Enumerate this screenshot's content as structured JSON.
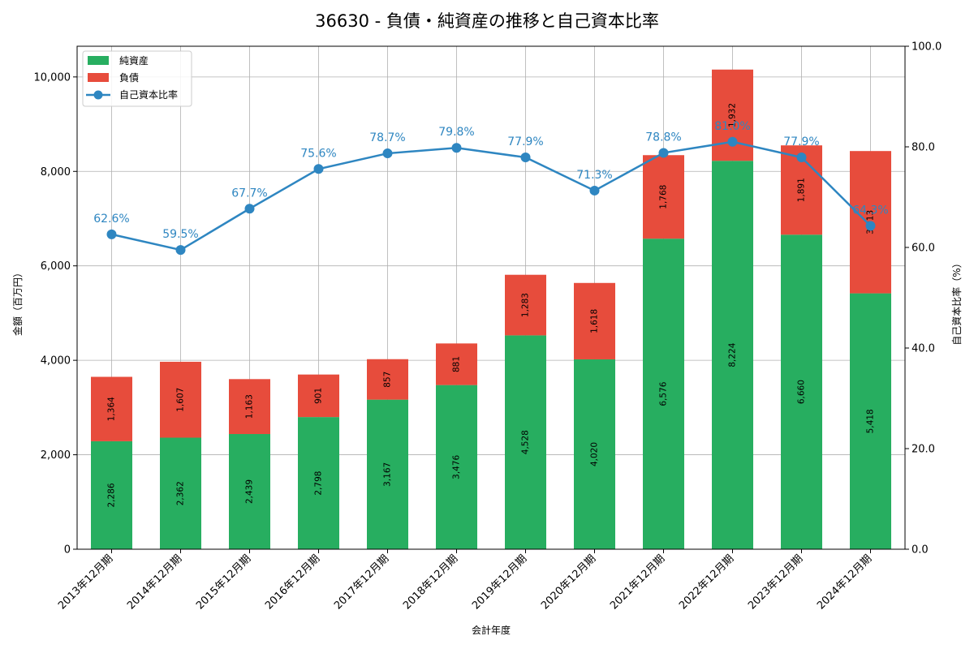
{
  "chart_data": {
    "type": "bar",
    "title": "36630 - 負債・純資産の推移と自己資本比率",
    "xlabel": "会計年度",
    "ylabel": "金額（百万円）",
    "y2label": "自己資本比率（%）",
    "ylim": [
      0,
      10650
    ],
    "y2lim": [
      0,
      100
    ],
    "yticks": [
      "0",
      "2,000",
      "4,000",
      "6,000",
      "8,000",
      "10,000"
    ],
    "y2ticks": [
      "0.0",
      "20.0",
      "40.0",
      "60.0",
      "80.0",
      "100.0"
    ],
    "grid": true,
    "legend_position": "top-left",
    "categories": [
      "2013年12月期",
      "2014年12月期",
      "2015年12月期",
      "2016年12月期",
      "2017年12月期",
      "2018年12月期",
      "2019年12月期",
      "2020年12月期",
      "2021年12月期",
      "2022年12月期",
      "2023年12月期",
      "2024年12月期"
    ],
    "series": [
      {
        "name": "純資産",
        "kind": "bar-stacked",
        "color": "#27ae60",
        "values": [
          2286,
          2362,
          2439,
          2798,
          3167,
          3476,
          4528,
          4020,
          6576,
          8224,
          6660,
          5418
        ],
        "labels": [
          "2,286",
          "2,362",
          "2,439",
          "2,798",
          "3,167",
          "3,476",
          "4,528",
          "4,020",
          "6,576",
          "8,224",
          "6,660",
          "5,418"
        ]
      },
      {
        "name": "負債",
        "kind": "bar-stacked",
        "color": "#e74c3c",
        "values": [
          1364,
          1607,
          1163,
          901,
          857,
          881,
          1283,
          1618,
          1768,
          1932,
          1891,
          3013
        ],
        "labels": [
          "1,364",
          "1,607",
          "1,163",
          "901",
          "857",
          "881",
          "1,283",
          "1,618",
          "1,768",
          "1,932",
          "1,891",
          "3,013"
        ]
      },
      {
        "name": "自己資本比率",
        "kind": "line",
        "axis": "right",
        "color": "#2e86c1",
        "values": [
          62.6,
          59.5,
          67.7,
          75.6,
          78.7,
          79.8,
          77.9,
          71.3,
          78.8,
          81.0,
          77.9,
          64.3
        ],
        "labels": [
          "62.6%",
          "59.5%",
          "67.7%",
          "75.6%",
          "78.7%",
          "79.8%",
          "77.9%",
          "71.3%",
          "78.8%",
          "81.0%",
          "77.9%",
          "64.3%"
        ]
      }
    ]
  }
}
